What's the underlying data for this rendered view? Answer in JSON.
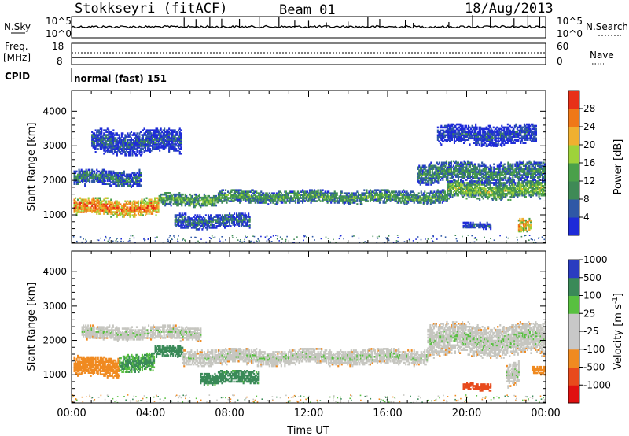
{
  "header": {
    "station": "Stokkseyri (fitACF)",
    "beam": "Beam 01",
    "date": "18/Aug/2013"
  },
  "top_panels": {
    "nsky": {
      "label": "N.Sky",
      "left_ticks": [
        "10^5",
        "10^0"
      ],
      "right_label": "N.Search",
      "right_ticks": [
        "10^5",
        "10^0"
      ]
    },
    "freq": {
      "label_line1": "Freq.",
      "label_line2": "[MHz]",
      "left_ticks": [
        "18",
        "8"
      ],
      "right_label": "Nave",
      "right_ticks": [
        "60",
        "0"
      ]
    },
    "cpid": {
      "label": "CPID",
      "text": "normal (fast) 151"
    }
  },
  "colors": {
    "power_scale": [
      "#1e2bd8",
      "#2f58a6",
      "#3f8a56",
      "#4aa04a",
      "#9ed23a",
      "#f0b030",
      "#f07818",
      "#e83018"
    ],
    "velocity_scale": [
      "#e01010",
      "#e84a1c",
      "#f08a20",
      "#c8c8c8",
      "#c8c8c8",
      "#58c040",
      "#3a8a58",
      "#2a3cc0"
    ],
    "velocity_ground": "#c6c6c0"
  },
  "chart_data": [
    {
      "type": "heatmap",
      "name": "power",
      "xlabel": "",
      "ylabel": "Slant Range [km]",
      "xlim": [
        0,
        24
      ],
      "ylim": [
        180,
        4600
      ],
      "y_ticks": [
        1000,
        2000,
        3000,
        4000
      ],
      "colorbar": {
        "label": "Power [dB]",
        "ticks": [
          "4",
          "8",
          "12",
          "16",
          "20",
          "24",
          "28"
        ],
        "range": [
          0,
          32
        ]
      },
      "features": [
        {
          "t0": 0.1,
          "t1": 4.4,
          "r_center": 1200,
          "r_halfwidth": 210,
          "value": 26
        },
        {
          "t0": 4.4,
          "t1": 7.4,
          "r_center": 1420,
          "r_halfwidth": 160,
          "value": 14
        },
        {
          "t0": 7.4,
          "t1": 19.0,
          "r_center": 1500,
          "r_halfwidth": 160,
          "value": 13
        },
        {
          "t0": 19.0,
          "t1": 24.0,
          "r_center": 1700,
          "r_halfwidth": 220,
          "value": 16
        },
        {
          "t0": 0.1,
          "t1": 3.5,
          "r_center": 2050,
          "r_halfwidth": 200,
          "value": 9
        },
        {
          "t0": 17.5,
          "t1": 24.0,
          "r_center": 2200,
          "r_halfwidth": 260,
          "value": 11
        },
        {
          "t0": 5.2,
          "t1": 9.0,
          "r_center": 800,
          "r_halfwidth": 180,
          "value": 8
        },
        {
          "t0": 19.8,
          "t1": 21.2,
          "r_center": 680,
          "r_halfwidth": 80,
          "value": 6
        },
        {
          "t0": 22.6,
          "t1": 23.2,
          "r_center": 650,
          "r_halfwidth": 180,
          "value": 24
        },
        {
          "t0": 1.0,
          "t1": 5.5,
          "r_center": 3100,
          "r_halfwidth": 300,
          "value": 6
        },
        {
          "t0": 18.5,
          "t1": 23.5,
          "r_center": 3300,
          "r_halfwidth": 250,
          "value": 5
        }
      ]
    },
    {
      "type": "heatmap",
      "name": "velocity",
      "xlabel": "Time UT",
      "ylabel": "Slant Range [km]",
      "xlim": [
        0,
        24
      ],
      "ylim": [
        180,
        4600
      ],
      "x_ticks": [
        "00:00",
        "04:00",
        "08:00",
        "12:00",
        "16:00",
        "20:00",
        "00:00"
      ],
      "y_ticks": [
        1000,
        2000,
        3000,
        4000
      ],
      "colorbar": {
        "label": "Velocity [m s",
        "label_sup": "-1",
        "label_close": "]",
        "ticks": [
          "-1000",
          "-500",
          "-100",
          "-25",
          "25",
          "100",
          "500",
          "1000"
        ],
        "range": [
          -1200,
          1200
        ]
      },
      "features": [
        {
          "t0": 0.1,
          "t1": 2.4,
          "r_center": 1200,
          "r_halfwidth": 260,
          "value": -300
        },
        {
          "t0": 2.4,
          "t1": 4.2,
          "r_center": 1350,
          "r_halfwidth": 220,
          "value": 150
        },
        {
          "t0": 4.2,
          "t1": 5.6,
          "r_center": 1650,
          "r_halfwidth": 150,
          "value": 260
        },
        {
          "t0": 5.6,
          "t1": 18.0,
          "r_center": 1500,
          "r_halfwidth": 200,
          "value": 0
        },
        {
          "t0": 18.0,
          "t1": 24.0,
          "r_center": 2000,
          "r_halfwidth": 400,
          "value": 0
        },
        {
          "t0": 0.5,
          "t1": 6.5,
          "r_center": 2200,
          "r_halfwidth": 180,
          "value": 0
        },
        {
          "t0": 6.5,
          "t1": 9.5,
          "r_center": 900,
          "r_halfwidth": 160,
          "value": 200
        },
        {
          "t0": 19.8,
          "t1": 21.2,
          "r_center": 640,
          "r_halfwidth": 90,
          "value": -600
        },
        {
          "t0": 23.3,
          "t1": 24.0,
          "r_center": 1100,
          "r_halfwidth": 120,
          "value": -250
        },
        {
          "t0": 22.0,
          "t1": 22.6,
          "r_center": 1000,
          "r_halfwidth": 300,
          "value": 0
        }
      ]
    }
  ]
}
